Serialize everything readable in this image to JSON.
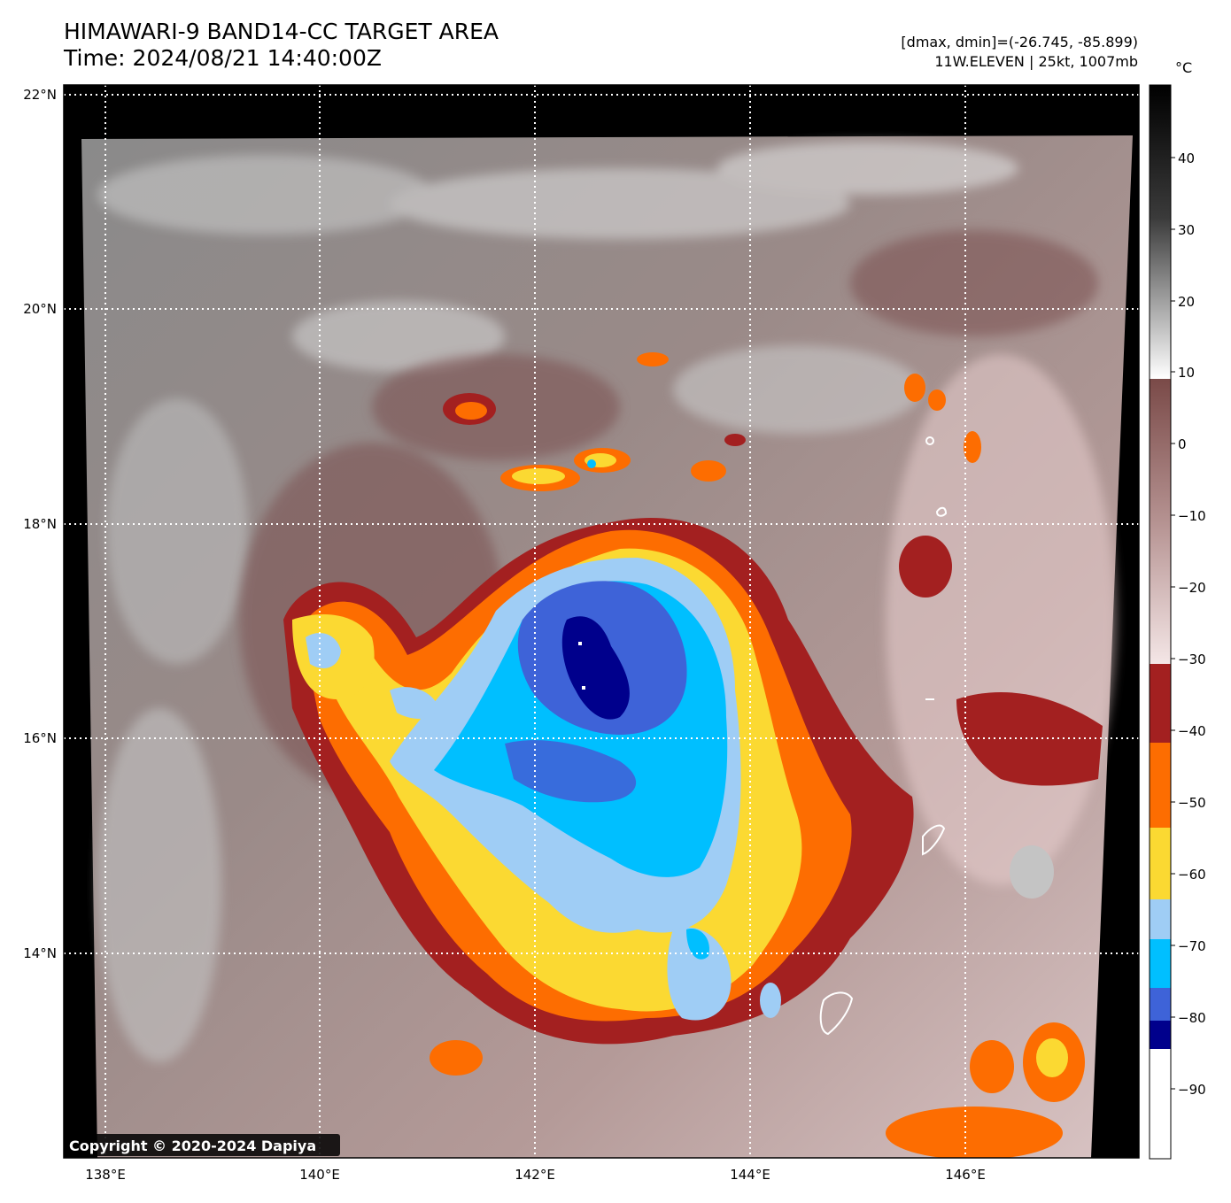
{
  "header": {
    "title": "HIMAWARI-9 BAND14-CC TARGET AREA",
    "time": "Time: 2024/08/21 14:40:00Z",
    "range": "[dmax, dmin]=(-26.745, -85.899)",
    "storm": "11W.ELEVEN | 25kt, 1007mb"
  },
  "map": {
    "lat_labels": [
      "22°N",
      "20°N",
      "18°N",
      "16°N",
      "14°N"
    ],
    "lon_labels": [
      "138°E",
      "140°E",
      "142°E",
      "144°E",
      "146°E"
    ],
    "gridlines": "dotted white",
    "copyright": "Copyright © 2020-2024 Dapiya"
  },
  "colorbar": {
    "unit": "°C",
    "ticks": [
      "40",
      "30",
      "20",
      "10",
      "0",
      "−10",
      "−20",
      "−30",
      "−40",
      "−50",
      "−60",
      "−70",
      "−80",
      "−90"
    ],
    "segments": [
      {
        "range": "10 to 48",
        "color": "grayscale"
      },
      {
        "range": "-30 to 10",
        "color": "#7a4a48 to #f1e3e3"
      },
      {
        "range": "-40 to -30",
        "color": "#a32020"
      },
      {
        "range": "-50 to -40",
        "color": "#fd6d01"
      },
      {
        "range": "-60 to -50",
        "color": "#fbd932"
      },
      {
        "range": "-70 to -60",
        "color": "#9fcdf5"
      },
      {
        "range": "-80 to -70",
        "color": "#00bfff"
      },
      {
        "range": "-85 to -80",
        "color": "#3e63d8"
      },
      {
        "range": "-88 to -85",
        "color": "#00008c"
      },
      {
        "range": "below -88",
        "color": "#ffffff"
      }
    ]
  }
}
